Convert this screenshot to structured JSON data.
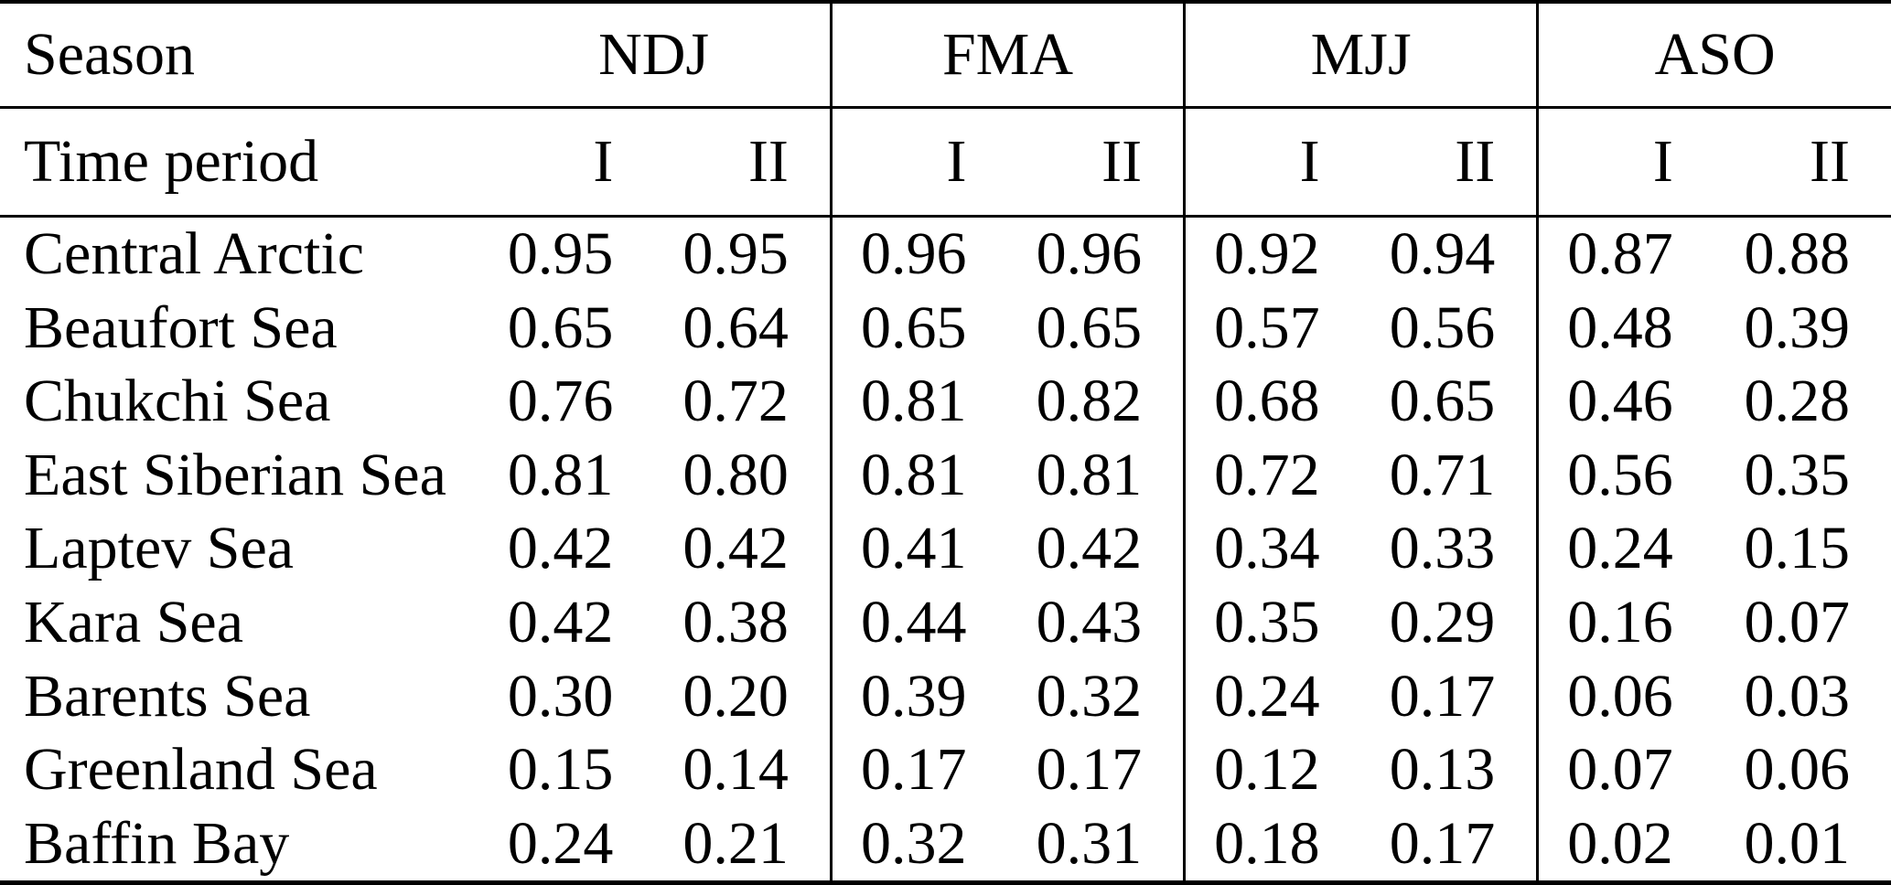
{
  "table": {
    "season_header": {
      "label": "Season",
      "groups": [
        "NDJ",
        "FMA",
        "MJJ",
        "ASO"
      ]
    },
    "period_header": {
      "label": "Time period",
      "periods": [
        "I",
        "II"
      ]
    },
    "rows": [
      {
        "region": "Central Arctic",
        "values": [
          "0.95",
          "0.95",
          "0.96",
          "0.96",
          "0.92",
          "0.94",
          "0.87",
          "0.88"
        ]
      },
      {
        "region": "Beaufort Sea",
        "values": [
          "0.65",
          "0.64",
          "0.65",
          "0.65",
          "0.57",
          "0.56",
          "0.48",
          "0.39"
        ]
      },
      {
        "region": "Chukchi Sea",
        "values": [
          "0.76",
          "0.72",
          "0.81",
          "0.82",
          "0.68",
          "0.65",
          "0.46",
          "0.28"
        ]
      },
      {
        "region": "East Siberian Sea",
        "values": [
          "0.81",
          "0.80",
          "0.81",
          "0.81",
          "0.72",
          "0.71",
          "0.56",
          "0.35"
        ]
      },
      {
        "region": "Laptev Sea",
        "values": [
          "0.42",
          "0.42",
          "0.41",
          "0.42",
          "0.34",
          "0.33",
          "0.24",
          "0.15"
        ]
      },
      {
        "region": "Kara Sea",
        "values": [
          "0.42",
          "0.38",
          "0.44",
          "0.43",
          "0.35",
          "0.29",
          "0.16",
          "0.07"
        ]
      },
      {
        "region": "Barents Sea",
        "values": [
          "0.30",
          "0.20",
          "0.39",
          "0.32",
          "0.24",
          "0.17",
          "0.06",
          "0.03"
        ]
      },
      {
        "region": "Greenland Sea",
        "values": [
          "0.15",
          "0.14",
          "0.17",
          "0.17",
          "0.12",
          "0.13",
          "0.07",
          "0.06"
        ]
      },
      {
        "region": "Baffin Bay",
        "values": [
          "0.24",
          "0.21",
          "0.32",
          "0.31",
          "0.18",
          "0.17",
          "0.02",
          "0.01"
        ]
      }
    ],
    "colors": {
      "text": "#000000",
      "background": "#ffffff",
      "rules": "#000000"
    }
  },
  "chart_data": {
    "type": "table",
    "title": "",
    "columns": [
      "Season/Region",
      "NDJ I",
      "NDJ II",
      "FMA I",
      "FMA II",
      "MJJ I",
      "MJJ II",
      "ASO I",
      "ASO II"
    ],
    "categories": [
      "Central Arctic",
      "Beaufort Sea",
      "Chukchi Sea",
      "East Siberian Sea",
      "Laptev Sea",
      "Kara Sea",
      "Barents Sea",
      "Greenland Sea",
      "Baffin Bay"
    ],
    "series": [
      {
        "name": "NDJ I",
        "values": [
          0.95,
          0.65,
          0.76,
          0.81,
          0.42,
          0.42,
          0.3,
          0.15,
          0.24
        ]
      },
      {
        "name": "NDJ II",
        "values": [
          0.95,
          0.64,
          0.72,
          0.8,
          0.42,
          0.38,
          0.2,
          0.14,
          0.21
        ]
      },
      {
        "name": "FMA I",
        "values": [
          0.96,
          0.65,
          0.81,
          0.81,
          0.41,
          0.44,
          0.39,
          0.17,
          0.32
        ]
      },
      {
        "name": "FMA II",
        "values": [
          0.96,
          0.65,
          0.82,
          0.81,
          0.42,
          0.43,
          0.32,
          0.17,
          0.31
        ]
      },
      {
        "name": "MJJ I",
        "values": [
          0.92,
          0.57,
          0.68,
          0.72,
          0.34,
          0.35,
          0.24,
          0.12,
          0.18
        ]
      },
      {
        "name": "MJJ II",
        "values": [
          0.94,
          0.56,
          0.65,
          0.71,
          0.33,
          0.29,
          0.17,
          0.13,
          0.17
        ]
      },
      {
        "name": "ASO I",
        "values": [
          0.87,
          0.48,
          0.46,
          0.56,
          0.24,
          0.16,
          0.06,
          0.07,
          0.02
        ]
      },
      {
        "name": "ASO II",
        "values": [
          0.88,
          0.39,
          0.28,
          0.35,
          0.15,
          0.07,
          0.03,
          0.06,
          0.01
        ]
      }
    ]
  }
}
